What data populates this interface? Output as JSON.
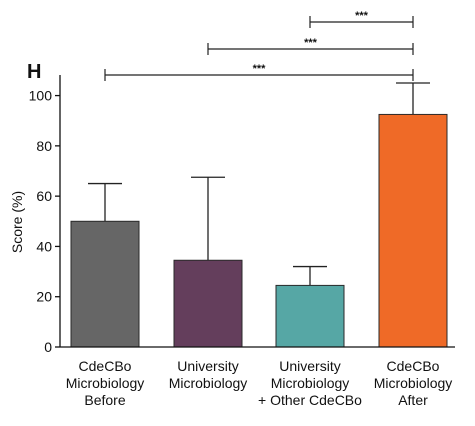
{
  "panel_label": "H",
  "chart_data": {
    "type": "bar",
    "categories": [
      [
        "CdeCBo",
        "Microbiology",
        "Before"
      ],
      [
        "University",
        "Microbiology"
      ],
      [
        "University",
        "Microbiology",
        "+ Other CdeCBo"
      ],
      [
        "CdeCBo",
        "Microbiology",
        "After"
      ]
    ],
    "values": [
      50,
      34.5,
      24.5,
      92.5
    ],
    "error_upper": [
      65,
      67.5,
      32,
      105
    ],
    "colors": [
      "#666666",
      "#643e5c",
      "#56a7a5",
      "#ef6a27"
    ],
    "ylabel": "Score (%)",
    "xlabel": "",
    "ylim": [
      0,
      105
    ],
    "yticks": [
      0,
      20,
      40,
      60,
      80,
      100
    ],
    "grid": false,
    "significance": [
      {
        "from": 0,
        "to": 3,
        "label": "***"
      },
      {
        "from": 1,
        "to": 3,
        "label": "***"
      },
      {
        "from": 2,
        "to": 3,
        "label": "***"
      }
    ]
  }
}
